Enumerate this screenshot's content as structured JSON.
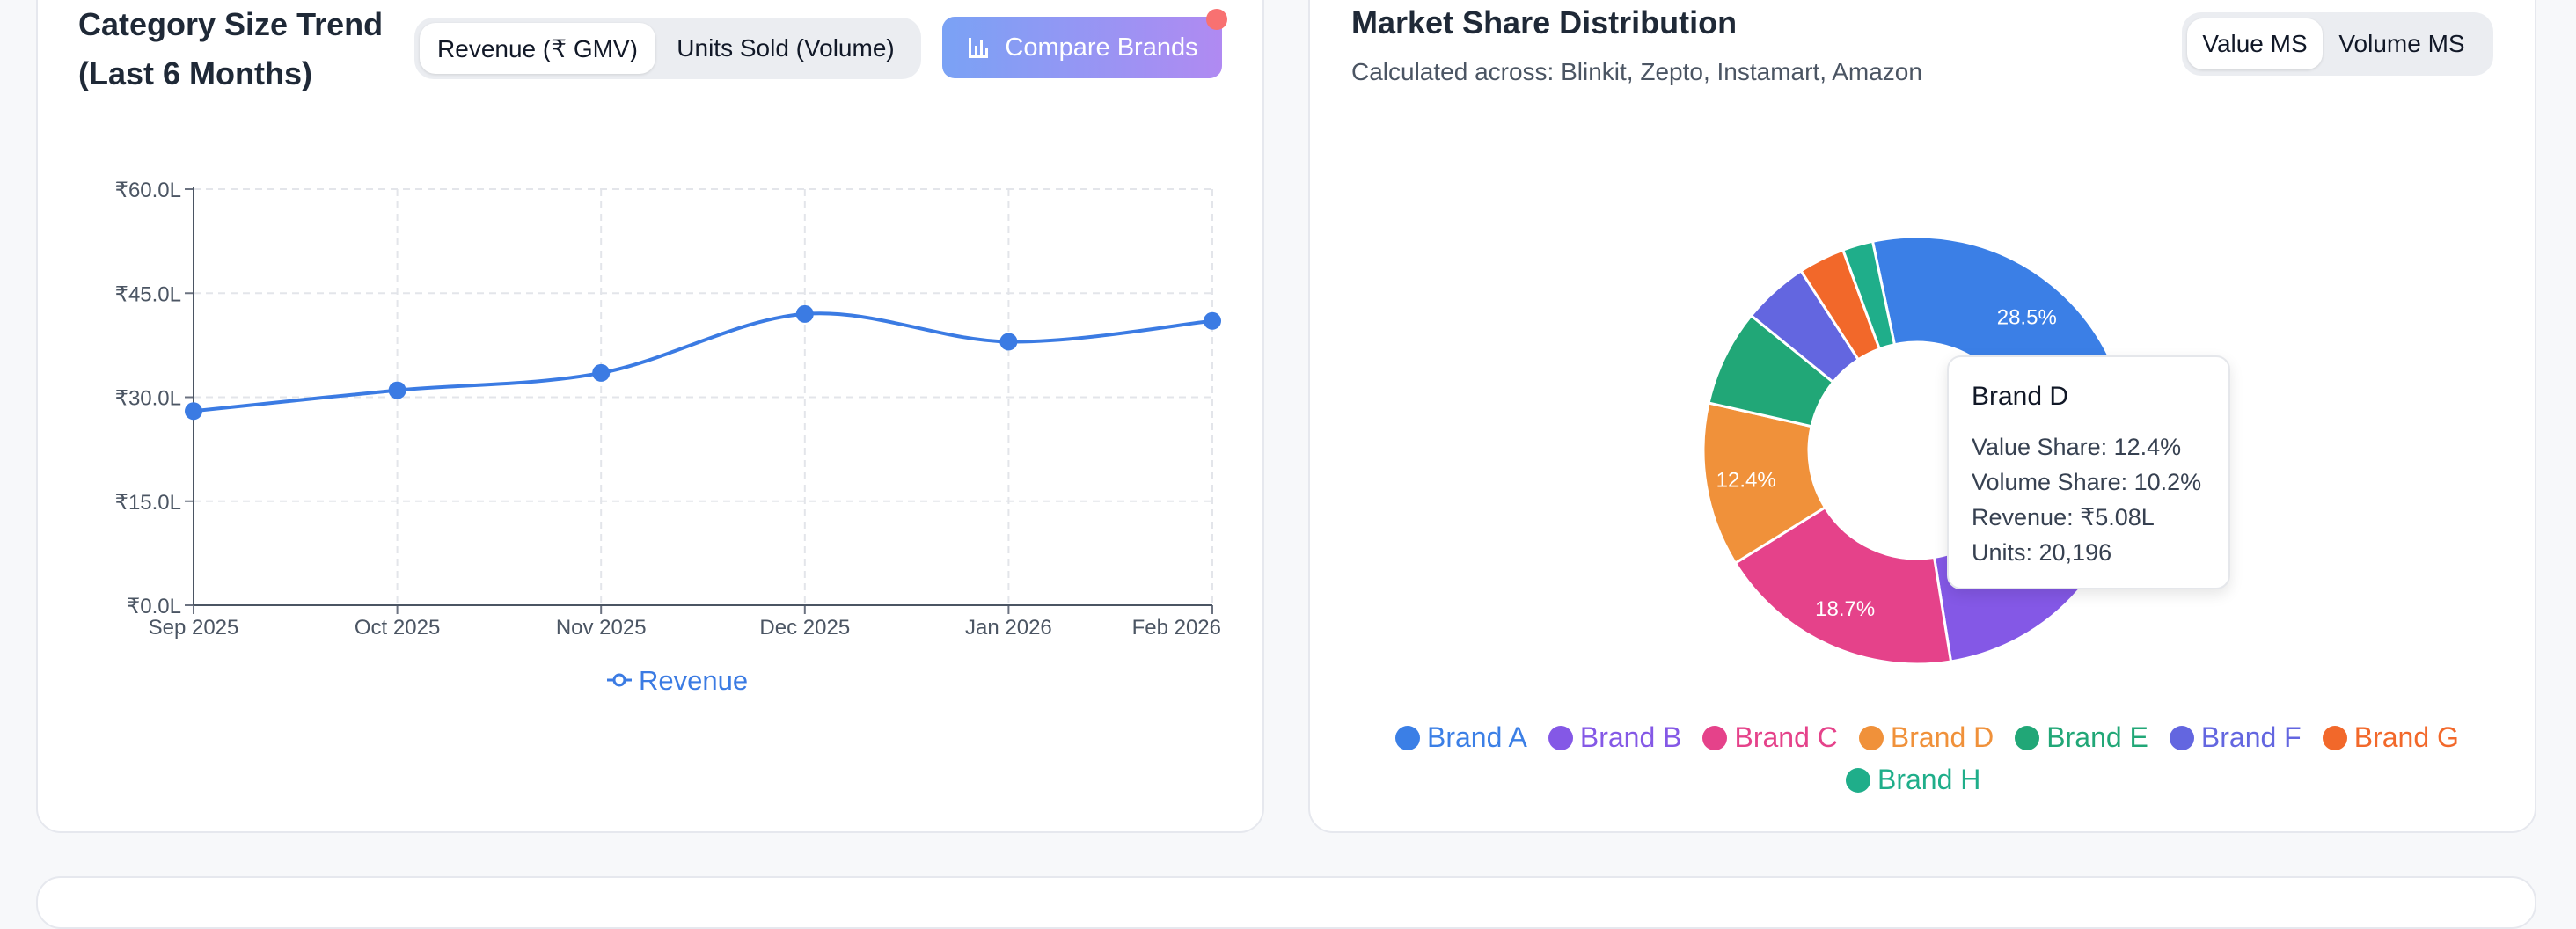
{
  "left_card": {
    "title": "Category Size Trend (Last 6 Months)",
    "toggle": {
      "option_revenue": "Revenue (₹ GMV)",
      "option_units": "Units Sold (Volume)",
      "selected": "Revenue (₹ GMV)"
    },
    "compare_button": "Compare Brands"
  },
  "right_card": {
    "title": "Market Share Distribution",
    "subtitle": "Calculated across: Blinkit, Zepto, Instamart, Amazon",
    "toggle": {
      "option_value": "Value MS",
      "option_volume": "Volume MS",
      "selected": "Value MS"
    }
  },
  "tooltip": {
    "title": "Brand D",
    "value_share": "Value Share: 12.4%",
    "volume_share": "Volume Share: 10.2%",
    "revenue": "Revenue: ₹5.08L",
    "units": "Units: 20,196"
  },
  "colors": {
    "line": "#3b7be3",
    "brand_a": "#3b7fe6",
    "brand_b": "#8458e6",
    "brand_c": "#e5428a",
    "brand_d": "#f0913a",
    "brand_e": "#21a777",
    "brand_f": "#6366e0",
    "brand_g": "#f2682a",
    "brand_h": "#1fae8a"
  },
  "chart_data": [
    {
      "type": "line",
      "x": [
        "Sep 2025",
        "Oct 2025",
        "Nov 2025",
        "Dec 2025",
        "Jan 2026",
        "Feb 2026"
      ],
      "series": [
        {
          "name": "Revenue",
          "values": [
            28.0,
            31.0,
            33.5,
            42.0,
            38.0,
            41.0
          ]
        }
      ],
      "y_ticks": [
        "₹0.0L",
        "₹15.0L",
        "₹30.0L",
        "₹45.0L",
        "₹60.0L"
      ],
      "ylim": [
        0,
        60
      ],
      "grid": true,
      "legend": "bottom",
      "title": "",
      "xlabel": "",
      "ylabel": ""
    },
    {
      "type": "pie",
      "donut": true,
      "categories": [
        "Brand A",
        "Brand B",
        "Brand C",
        "Brand D",
        "Brand E",
        "Brand F",
        "Brand G",
        "Brand H"
      ],
      "values": [
        28.5,
        22.3,
        18.7,
        12.4,
        7.3,
        5.0,
        3.5,
        2.3
      ],
      "slice_labels": [
        "28.5%",
        "22.3%",
        "18.7%",
        "12.4%",
        "",
        "",
        "",
        ""
      ],
      "legend": "bottom"
    }
  ]
}
